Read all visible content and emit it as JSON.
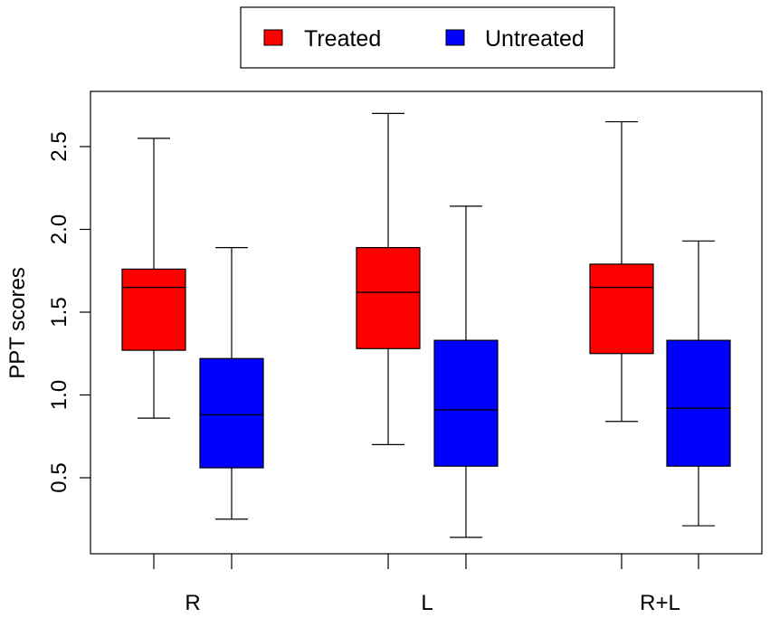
{
  "chart_data": {
    "type": "boxplot",
    "title": "",
    "xlabel": "",
    "ylabel": "PPT scores",
    "ylim": [
      0.05,
      2.8
    ],
    "yticks": [
      0.5,
      1.0,
      1.5,
      2.0,
      2.5
    ],
    "ytick_labels": [
      "0.5",
      "1.0",
      "1.5",
      "2.0",
      "2.5"
    ],
    "grid": false,
    "legend_position": "top-center",
    "categories": [
      "R",
      "L",
      "R+L"
    ],
    "series": [
      {
        "name": "Treated",
        "color": "#ff0000",
        "boxes": [
          {
            "whisker_low": 0.86,
            "q1": 1.27,
            "median": 1.65,
            "q3": 1.76,
            "whisker_high": 2.55
          },
          {
            "whisker_low": 0.7,
            "q1": 1.28,
            "median": 1.62,
            "q3": 1.89,
            "whisker_high": 2.7
          },
          {
            "whisker_low": 0.84,
            "q1": 1.25,
            "median": 1.65,
            "q3": 1.79,
            "whisker_high": 2.65
          }
        ]
      },
      {
        "name": "Untreated",
        "color": "#0000ff",
        "boxes": [
          {
            "whisker_low": 0.25,
            "q1": 0.56,
            "median": 0.88,
            "q3": 1.22,
            "whisker_high": 1.89
          },
          {
            "whisker_low": 0.14,
            "q1": 0.57,
            "median": 0.91,
            "q3": 1.33,
            "whisker_high": 2.14
          },
          {
            "whisker_low": 0.21,
            "q1": 0.57,
            "median": 0.92,
            "q3": 1.33,
            "whisker_high": 1.93
          }
        ]
      }
    ]
  }
}
